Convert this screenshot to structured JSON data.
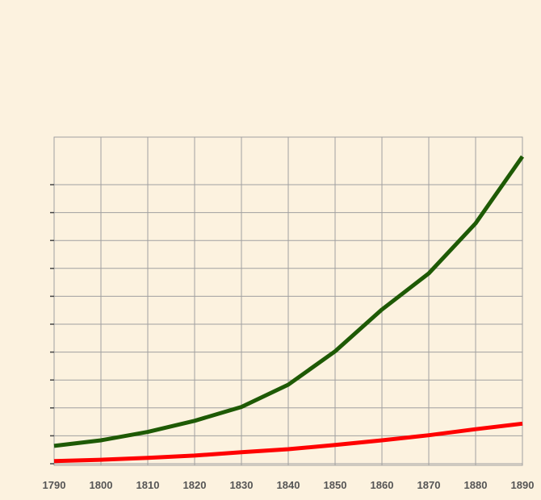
{
  "chart_data": {
    "type": "line",
    "x": [
      1790,
      1800,
      1810,
      1820,
      1830,
      1840,
      1850,
      1860,
      1870,
      1880,
      1890
    ],
    "xlim": [
      1790,
      1890
    ],
    "x_ticks": [
      "1790",
      "1800",
      "1810",
      "1820",
      "1830",
      "1840",
      "1850",
      "1860",
      "1870",
      "1880",
      "1890"
    ],
    "ylim": [
      0,
      11.8
    ],
    "y_tick_count": 11,
    "grid": true,
    "series": [
      {
        "color": "#1e5a05",
        "values": [
          0.7,
          0.9,
          1.2,
          1.6,
          2.1,
          2.9,
          4.1,
          5.6,
          6.9,
          8.7,
          11.1
        ]
      },
      {
        "color": "#ff0000",
        "values": [
          0.15,
          0.2,
          0.27,
          0.35,
          0.47,
          0.58,
          0.73,
          0.9,
          1.08,
          1.3,
          1.5
        ]
      }
    ],
    "background_color": "#fcf2df",
    "grid_color": "#a0a0a0"
  }
}
